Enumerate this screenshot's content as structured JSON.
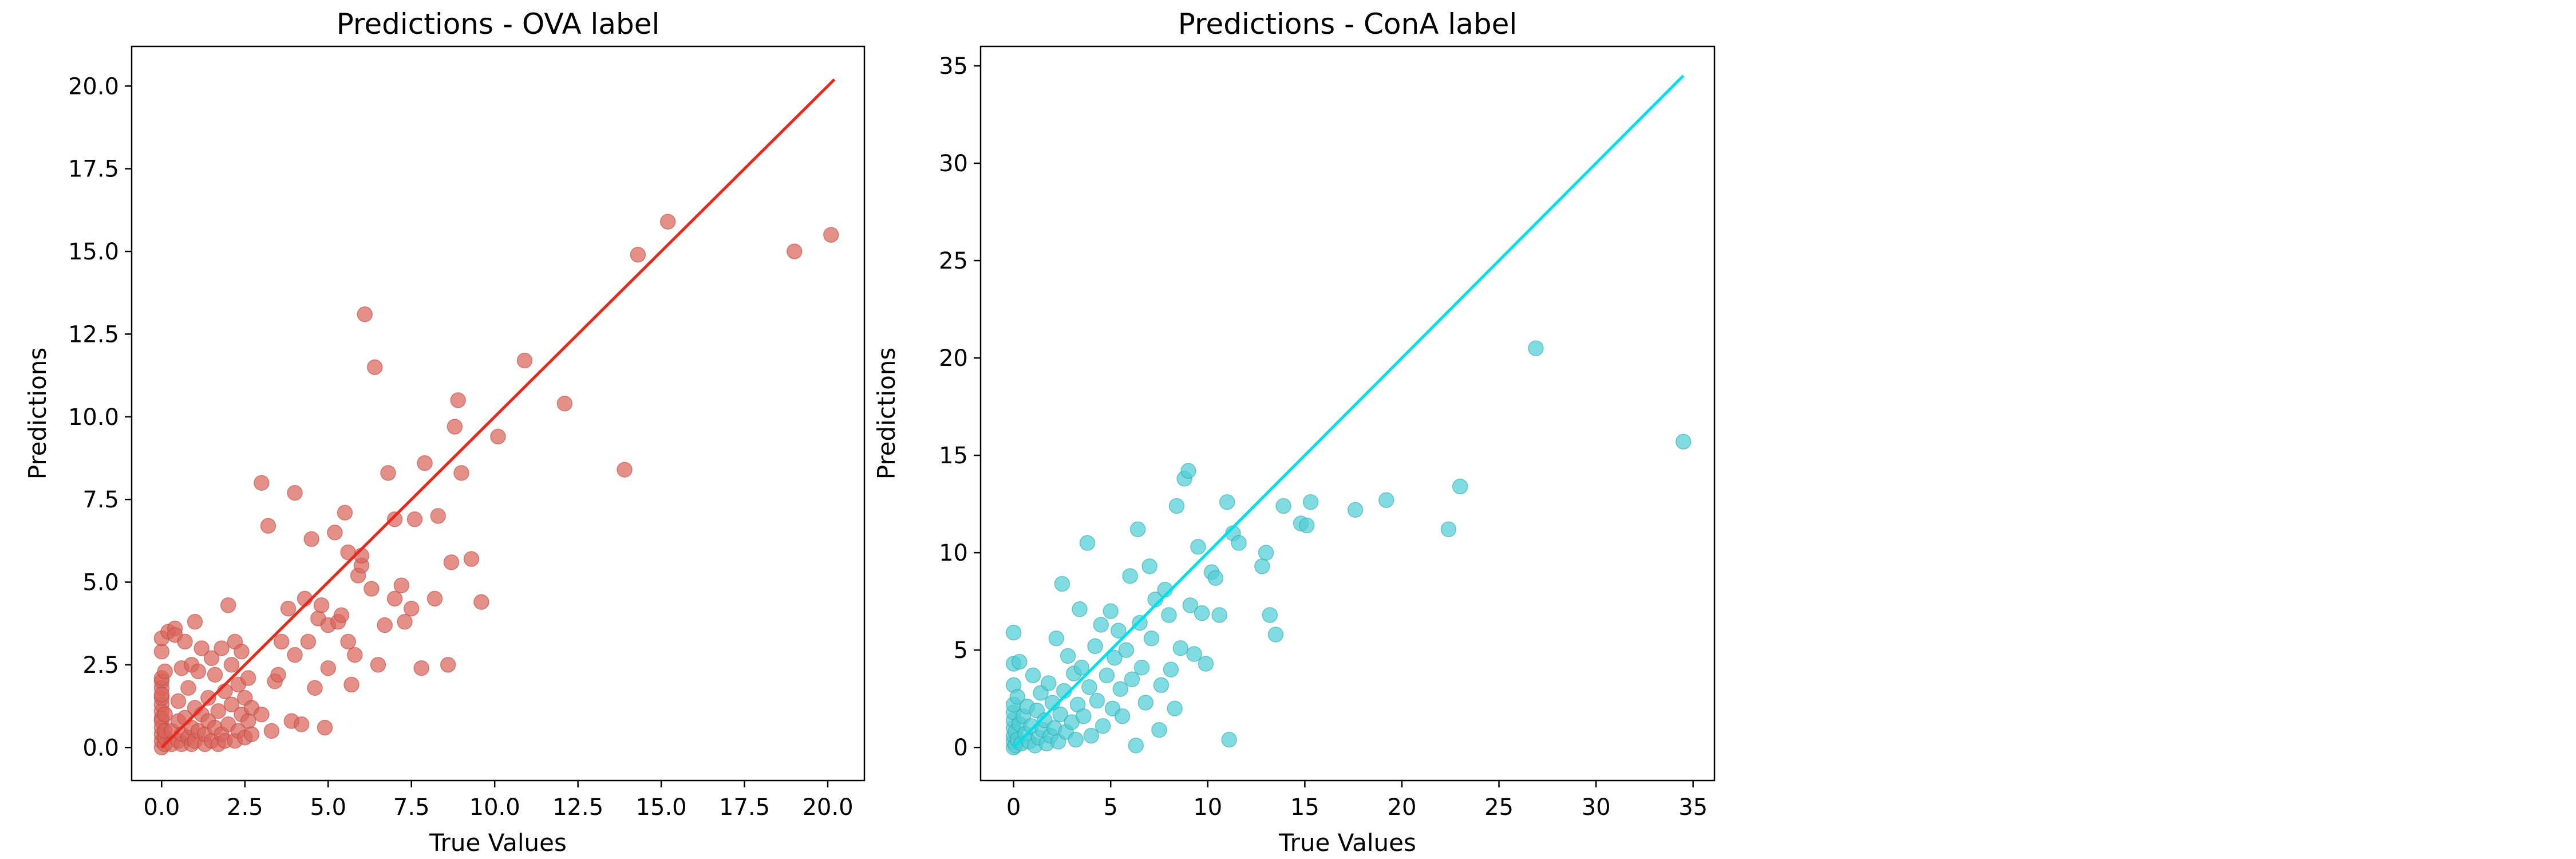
{
  "chart_data": [
    {
      "type": "scatter",
      "title": "Predictions - OVA label",
      "xlabel": "True Values",
      "ylabel": "Predictions",
      "xlim": [
        -0.9,
        21.1
      ],
      "ylim": [
        -1.0,
        21.2
      ],
      "xticks": [
        0.0,
        2.5,
        5.0,
        7.5,
        10.0,
        12.5,
        15.0,
        17.5,
        20.0
      ],
      "xtick_labels": [
        "0.0",
        "2.5",
        "5.0",
        "7.5",
        "10.0",
        "12.5",
        "15.0",
        "17.5",
        "20.0"
      ],
      "yticks": [
        0.0,
        2.5,
        5.0,
        7.5,
        10.0,
        12.5,
        15.0,
        17.5,
        20.0
      ],
      "ytick_labels": [
        "0.0",
        "2.5",
        "5.0",
        "7.5",
        "10.0",
        "12.5",
        "15.0",
        "17.5",
        "20.0"
      ],
      "point_color": "#d9645a",
      "point_edge": "#b94a40",
      "line_color": "#e8281a",
      "grid": false,
      "reference_line": {
        "x": [
          0.0,
          20.2
        ],
        "y": [
          0.0,
          20.2
        ]
      },
      "points": [
        [
          0.0,
          0.0
        ],
        [
          0.0,
          0.2
        ],
        [
          0.0,
          0.4
        ],
        [
          0.0,
          0.6
        ],
        [
          0.0,
          0.9
        ],
        [
          0.0,
          1.1
        ],
        [
          0.0,
          1.3
        ],
        [
          0.0,
          1.5
        ],
        [
          0.0,
          1.8
        ],
        [
          0.0,
          2.0
        ],
        [
          0.0,
          2.1
        ],
        [
          0.0,
          2.9
        ],
        [
          0.0,
          3.3
        ],
        [
          0.0,
          0.8
        ],
        [
          0.0,
          1.6
        ],
        [
          0.1,
          0.1
        ],
        [
          0.1,
          0.3
        ],
        [
          0.1,
          0.5
        ],
        [
          0.1,
          1.0
        ],
        [
          0.1,
          2.3
        ],
        [
          0.2,
          3.5
        ],
        [
          0.3,
          0.1
        ],
        [
          0.3,
          0.5
        ],
        [
          0.4,
          3.6
        ],
        [
          0.4,
          3.4
        ],
        [
          0.5,
          0.2
        ],
        [
          0.5,
          0.8
        ],
        [
          0.5,
          1.4
        ],
        [
          0.6,
          0.1
        ],
        [
          0.6,
          0.4
        ],
        [
          0.6,
          2.4
        ],
        [
          0.7,
          3.2
        ],
        [
          0.7,
          0.9
        ],
        [
          0.8,
          0.3
        ],
        [
          0.8,
          1.8
        ],
        [
          0.9,
          0.1
        ],
        [
          0.9,
          0.6
        ],
        [
          0.9,
          2.5
        ],
        [
          1.0,
          3.8
        ],
        [
          1.0,
          1.2
        ],
        [
          1.0,
          0.2
        ],
        [
          1.1,
          2.3
        ],
        [
          1.1,
          0.5
        ],
        [
          1.2,
          1.0
        ],
        [
          1.2,
          3.0
        ],
        [
          1.3,
          0.1
        ],
        [
          1.3,
          0.4
        ],
        [
          1.4,
          1.5
        ],
        [
          1.4,
          0.8
        ],
        [
          1.5,
          2.7
        ],
        [
          1.5,
          0.2
        ],
        [
          1.6,
          2.2
        ],
        [
          1.6,
          0.6
        ],
        [
          1.7,
          1.1
        ],
        [
          1.7,
          0.1
        ],
        [
          1.8,
          0.4
        ],
        [
          1.8,
          3.0
        ],
        [
          1.9,
          1.7
        ],
        [
          1.9,
          0.2
        ],
        [
          2.0,
          0.7
        ],
        [
          2.0,
          4.3
        ],
        [
          2.1,
          2.5
        ],
        [
          2.1,
          1.3
        ],
        [
          2.2,
          0.2
        ],
        [
          2.2,
          3.2
        ],
        [
          2.3,
          0.5
        ],
        [
          2.3,
          1.9
        ],
        [
          2.4,
          1.0
        ],
        [
          2.4,
          2.9
        ],
        [
          2.5,
          0.3
        ],
        [
          2.5,
          1.5
        ],
        [
          2.6,
          0.8
        ],
        [
          2.6,
          2.1
        ],
        [
          2.7,
          1.2
        ],
        [
          2.7,
          0.4
        ],
        [
          3.0,
          1.0
        ],
        [
          3.0,
          8.0
        ],
        [
          3.2,
          6.7
        ],
        [
          3.3,
          0.5
        ],
        [
          3.4,
          2.0
        ],
        [
          3.5,
          2.2
        ],
        [
          3.6,
          3.2
        ],
        [
          3.8,
          4.2
        ],
        [
          3.9,
          0.8
        ],
        [
          4.0,
          7.7
        ],
        [
          4.0,
          2.8
        ],
        [
          4.2,
          0.7
        ],
        [
          4.3,
          4.5
        ],
        [
          4.4,
          3.2
        ],
        [
          4.5,
          6.3
        ],
        [
          4.6,
          1.8
        ],
        [
          4.7,
          3.9
        ],
        [
          4.8,
          4.3
        ],
        [
          4.9,
          0.6
        ],
        [
          5.0,
          2.4
        ],
        [
          5.0,
          3.7
        ],
        [
          5.2,
          6.5
        ],
        [
          5.3,
          3.8
        ],
        [
          5.4,
          4.0
        ],
        [
          5.5,
          7.1
        ],
        [
          5.6,
          5.9
        ],
        [
          5.6,
          3.2
        ],
        [
          5.7,
          1.9
        ],
        [
          5.8,
          2.8
        ],
        [
          5.9,
          5.2
        ],
        [
          6.0,
          5.5
        ],
        [
          6.0,
          5.8
        ],
        [
          6.1,
          13.1
        ],
        [
          6.3,
          4.8
        ],
        [
          6.4,
          11.5
        ],
        [
          6.5,
          2.5
        ],
        [
          6.7,
          3.7
        ],
        [
          6.8,
          8.3
        ],
        [
          7.0,
          6.9
        ],
        [
          7.0,
          4.5
        ],
        [
          7.2,
          4.9
        ],
        [
          7.3,
          3.8
        ],
        [
          7.5,
          4.2
        ],
        [
          7.6,
          6.9
        ],
        [
          7.8,
          2.4
        ],
        [
          7.9,
          8.6
        ],
        [
          8.2,
          4.5
        ],
        [
          8.3,
          7.0
        ],
        [
          8.6,
          2.5
        ],
        [
          8.7,
          5.6
        ],
        [
          8.8,
          9.7
        ],
        [
          8.9,
          10.5
        ],
        [
          9.0,
          8.3
        ],
        [
          9.3,
          5.7
        ],
        [
          9.6,
          4.4
        ],
        [
          10.1,
          9.4
        ],
        [
          10.9,
          11.7
        ],
        [
          12.1,
          10.4
        ],
        [
          13.9,
          8.4
        ],
        [
          14.3,
          14.9
        ],
        [
          15.2,
          15.9
        ],
        [
          19.0,
          15.0
        ],
        [
          20.1,
          15.5
        ]
      ]
    },
    {
      "type": "scatter",
      "title": "Predictions - ConA label",
      "xlabel": "True Values",
      "ylabel": "Predictions",
      "xlim": [
        -1.7,
        36.1
      ],
      "ylim": [
        -1.7,
        36.0
      ],
      "xticks": [
        0,
        5,
        10,
        15,
        20,
        25,
        30,
        35
      ],
      "xtick_labels": [
        "0",
        "5",
        "10",
        "15",
        "20",
        "25",
        "30",
        "35"
      ],
      "yticks": [
        0,
        5,
        10,
        15,
        20,
        25,
        30,
        35
      ],
      "ytick_labels": [
        "0",
        "5",
        "10",
        "15",
        "20",
        "25",
        "30",
        "35"
      ],
      "point_color": "#4fcfd6",
      "point_edge": "#2ea7ae",
      "line_color": "#00e0ea",
      "grid": false,
      "reference_line": {
        "x": [
          0.0,
          34.5
        ],
        "y": [
          0.0,
          34.5
        ]
      },
      "points": [
        [
          0.0,
          0.0
        ],
        [
          0.0,
          0.3
        ],
        [
          0.0,
          0.6
        ],
        [
          0.0,
          1.0
        ],
        [
          0.0,
          1.4
        ],
        [
          0.0,
          1.8
        ],
        [
          0.0,
          2.2
        ],
        [
          0.0,
          3.2
        ],
        [
          0.0,
          4.3
        ],
        [
          0.0,
          5.9
        ],
        [
          0.1,
          0.1
        ],
        [
          0.1,
          0.8
        ],
        [
          0.2,
          2.6
        ],
        [
          0.2,
          0.4
        ],
        [
          0.3,
          1.2
        ],
        [
          0.3,
          4.4
        ],
        [
          0.4,
          0.2
        ],
        [
          0.5,
          1.6
        ],
        [
          0.6,
          0.7
        ],
        [
          0.7,
          2.1
        ],
        [
          0.8,
          0.3
        ],
        [
          0.9,
          1.1
        ],
        [
          1.0,
          3.7
        ],
        [
          1.1,
          0.1
        ],
        [
          1.2,
          1.9
        ],
        [
          1.3,
          0.5
        ],
        [
          1.4,
          2.8
        ],
        [
          1.5,
          0.9
        ],
        [
          1.6,
          1.4
        ],
        [
          1.7,
          0.2
        ],
        [
          1.8,
          3.3
        ],
        [
          1.9,
          0.6
        ],
        [
          2.0,
          2.3
        ],
        [
          2.1,
          1.0
        ],
        [
          2.2,
          5.6
        ],
        [
          2.3,
          0.3
        ],
        [
          2.4,
          1.7
        ],
        [
          2.5,
          8.4
        ],
        [
          2.6,
          2.9
        ],
        [
          2.7,
          0.8
        ],
        [
          2.8,
          4.7
        ],
        [
          3.0,
          1.3
        ],
        [
          3.1,
          3.8
        ],
        [
          3.2,
          0.4
        ],
        [
          3.3,
          2.2
        ],
        [
          3.4,
          7.1
        ],
        [
          3.5,
          4.1
        ],
        [
          3.6,
          1.6
        ],
        [
          3.8,
          10.5
        ],
        [
          3.9,
          3.1
        ],
        [
          4.0,
          0.6
        ],
        [
          4.2,
          5.2
        ],
        [
          4.3,
          2.4
        ],
        [
          4.5,
          6.3
        ],
        [
          4.6,
          1.1
        ],
        [
          4.8,
          3.7
        ],
        [
          5.0,
          7.0
        ],
        [
          5.1,
          2.0
        ],
        [
          5.2,
          4.6
        ],
        [
          5.4,
          6.0
        ],
        [
          5.5,
          3.0
        ],
        [
          5.6,
          1.6
        ],
        [
          5.8,
          5.0
        ],
        [
          6.0,
          8.8
        ],
        [
          6.1,
          3.5
        ],
        [
          6.3,
          0.1
        ],
        [
          6.4,
          11.2
        ],
        [
          6.5,
          6.4
        ],
        [
          6.6,
          4.1
        ],
        [
          6.8,
          2.3
        ],
        [
          7.0,
          9.3
        ],
        [
          7.1,
          5.6
        ],
        [
          7.3,
          7.6
        ],
        [
          7.5,
          0.9
        ],
        [
          7.6,
          3.2
        ],
        [
          7.8,
          8.1
        ],
        [
          8.0,
          6.8
        ],
        [
          8.1,
          4.0
        ],
        [
          8.3,
          2.0
        ],
        [
          8.4,
          12.4
        ],
        [
          8.6,
          5.1
        ],
        [
          8.8,
          13.8
        ],
        [
          9.0,
          14.2
        ],
        [
          9.1,
          7.3
        ],
        [
          9.3,
          4.8
        ],
        [
          9.5,
          10.3
        ],
        [
          9.7,
          6.9
        ],
        [
          9.9,
          4.3
        ],
        [
          10.2,
          9.0
        ],
        [
          10.4,
          8.7
        ],
        [
          10.6,
          6.8
        ],
        [
          11.0,
          12.6
        ],
        [
          11.1,
          0.4
        ],
        [
          11.3,
          11.0
        ],
        [
          11.6,
          10.5
        ],
        [
          12.8,
          9.3
        ],
        [
          13.0,
          10.0
        ],
        [
          13.2,
          6.8
        ],
        [
          13.5,
          5.8
        ],
        [
          13.9,
          12.4
        ],
        [
          14.8,
          11.5
        ],
        [
          15.1,
          11.4
        ],
        [
          15.3,
          12.6
        ],
        [
          17.6,
          12.2
        ],
        [
          19.2,
          12.7
        ],
        [
          22.4,
          11.2
        ],
        [
          23.0,
          13.4
        ],
        [
          26.9,
          20.5
        ],
        [
          34.5,
          15.7
        ]
      ]
    }
  ]
}
